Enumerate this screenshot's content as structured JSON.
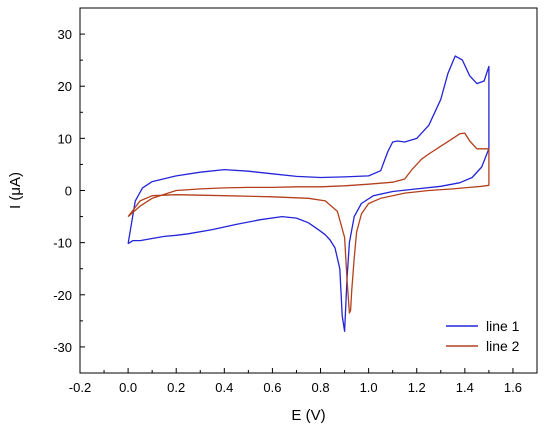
{
  "chart_data": {
    "type": "line",
    "title": "",
    "xlabel": "E (V)",
    "ylabel": "I (μA)",
    "xlim": [
      -0.2,
      1.7
    ],
    "ylim": [
      -35,
      35
    ],
    "xticks": [
      -0.2,
      0.0,
      0.2,
      0.4,
      0.6,
      0.8,
      1.0,
      1.2,
      1.4,
      1.6
    ],
    "yticks": [
      -30,
      -20,
      -10,
      0,
      10,
      20,
      30
    ],
    "xtick_labels": [
      "-0.2",
      "0.0",
      "0.2",
      "0.4",
      "0.6",
      "0.8",
      "1.0",
      "1.2",
      "1.4",
      "1.6"
    ],
    "ytick_labels": [
      "-30",
      "-20",
      "-10",
      "0",
      "10",
      "20",
      "30"
    ],
    "grid": false,
    "legend_position": "bottom-right",
    "colors": {
      "line 1": "#2424d8",
      "line 2": "#b3401c"
    },
    "series": [
      {
        "name": "line 1",
        "x": [
          0.0,
          0.03,
          0.06,
          0.1,
          0.2,
          0.3,
          0.4,
          0.5,
          0.6,
          0.7,
          0.8,
          0.9,
          1.0,
          1.05,
          1.08,
          1.1,
          1.12,
          1.15,
          1.2,
          1.25,
          1.3,
          1.33,
          1.36,
          1.39,
          1.42,
          1.45,
          1.48,
          1.5,
          1.5,
          1.47,
          1.43,
          1.38,
          1.3,
          1.2,
          1.1,
          1.02,
          0.97,
          0.94,
          0.92,
          0.91,
          0.905,
          0.9,
          0.89,
          0.88,
          0.86,
          0.84,
          0.82,
          0.8,
          0.75,
          0.7,
          0.64,
          0.55,
          0.45,
          0.35,
          0.25,
          0.2,
          0.15,
          0.1,
          0.05,
          0.02,
          0.0
        ],
        "y": [
          -10.2,
          -2.0,
          0.5,
          1.7,
          2.8,
          3.5,
          4.0,
          3.7,
          3.2,
          2.7,
          2.5,
          2.6,
          2.8,
          3.8,
          7.5,
          9.3,
          9.5,
          9.3,
          10.0,
          12.5,
          17.5,
          22.5,
          25.8,
          25.0,
          22.0,
          20.5,
          21.0,
          23.8,
          8.0,
          4.5,
          2.5,
          1.5,
          0.8,
          0.3,
          -0.2,
          -1.0,
          -2.5,
          -5.0,
          -10.0,
          -17.0,
          -22.0,
          -27.0,
          -24.0,
          -15.0,
          -11.0,
          -9.5,
          -8.5,
          -7.8,
          -6.2,
          -5.3,
          -5.0,
          -5.6,
          -6.5,
          -7.5,
          -8.3,
          -8.6,
          -8.8,
          -9.2,
          -9.6,
          -9.6,
          -10.2
        ]
      },
      {
        "name": "line 2",
        "x": [
          0.0,
          0.05,
          0.1,
          0.2,
          0.3,
          0.4,
          0.5,
          0.6,
          0.7,
          0.8,
          0.9,
          1.0,
          1.1,
          1.15,
          1.18,
          1.2,
          1.22,
          1.25,
          1.3,
          1.35,
          1.38,
          1.4,
          1.42,
          1.45,
          1.5,
          1.5,
          1.47,
          1.42,
          1.35,
          1.25,
          1.15,
          1.05,
          1.0,
          0.97,
          0.95,
          0.94,
          0.93,
          0.925,
          0.92,
          0.91,
          0.9,
          0.87,
          0.82,
          0.75,
          0.6,
          0.4,
          0.2,
          0.1,
          0.05,
          0.0
        ],
        "y": [
          -5.0,
          -3.0,
          -1.5,
          0.0,
          0.3,
          0.5,
          0.6,
          0.6,
          0.7,
          0.7,
          0.9,
          1.2,
          1.6,
          2.2,
          4.0,
          5.0,
          6.0,
          7.0,
          8.5,
          10.0,
          10.9,
          11.0,
          9.5,
          8.0,
          8.0,
          1.0,
          0.8,
          0.6,
          0.3,
          0.0,
          -0.5,
          -1.5,
          -2.5,
          -4.5,
          -8.0,
          -13.0,
          -19.0,
          -23.0,
          -23.5,
          -17.0,
          -9.0,
          -4.0,
          -2.0,
          -1.5,
          -1.2,
          -1.0,
          -0.8,
          -1.0,
          -2.0,
          -5.0
        ]
      }
    ]
  }
}
